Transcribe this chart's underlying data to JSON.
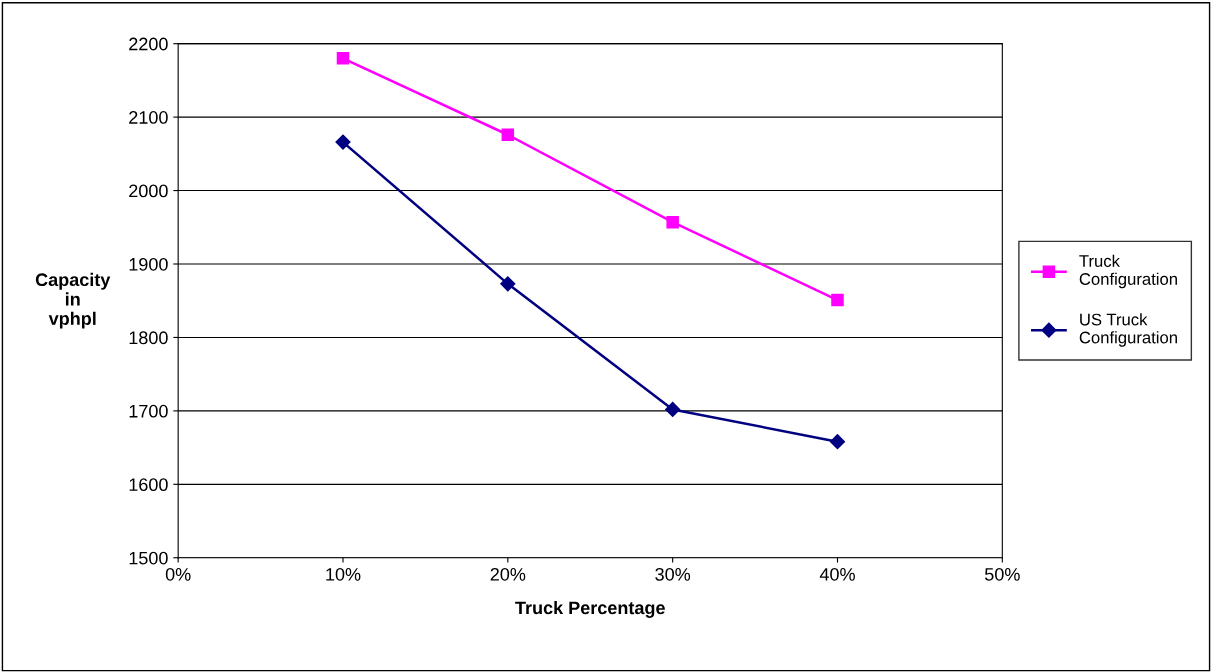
{
  "chart_data": {
    "type": "line",
    "xlabel": "Truck Percentage",
    "ylabel": "Capacity\nin\nvphpl",
    "x": [
      10,
      20,
      30,
      40
    ],
    "series": [
      {
        "name": "Truck\nConfiguration",
        "color": "#ff00ff",
        "marker": "square",
        "values": [
          2180,
          2076,
          1957,
          1851
        ]
      },
      {
        "name": "US Truck\nConfiguration",
        "color": "#000080",
        "marker": "diamond",
        "values": [
          2066,
          1873,
          1702,
          1658
        ]
      }
    ],
    "xlim": [
      0,
      50
    ],
    "xticks": [
      {
        "value": 0,
        "label": "0%"
      },
      {
        "value": 10,
        "label": "10%"
      },
      {
        "value": 20,
        "label": "20%"
      },
      {
        "value": 30,
        "label": "30%"
      },
      {
        "value": 40,
        "label": "40%"
      },
      {
        "value": 50,
        "label": "50%"
      }
    ],
    "ylim": [
      1500,
      2200
    ],
    "yticks": [
      1500,
      1600,
      1700,
      1800,
      1900,
      2000,
      2100,
      2200
    ],
    "grid": "y",
    "legend": "right",
    "line_style": "solid"
  }
}
